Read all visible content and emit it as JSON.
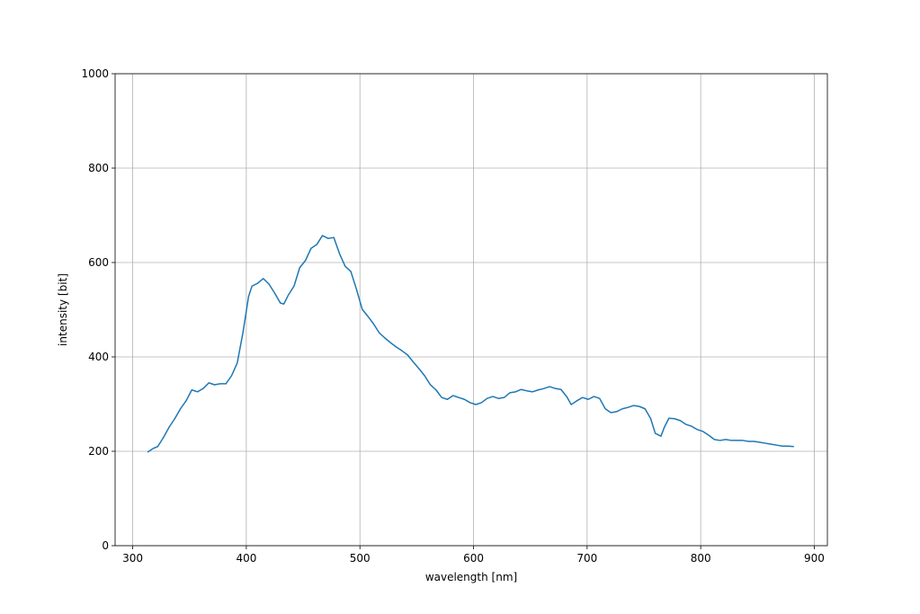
{
  "chart_data": {
    "type": "line",
    "xlabel": "wavelength [nm]",
    "ylabel": "intensity [bit]",
    "xlim": [
      284.5,
      911.5
    ],
    "ylim": [
      0,
      1000
    ],
    "xticks": [
      300,
      400,
      500,
      600,
      700,
      800,
      900
    ],
    "yticks": [
      0,
      200,
      400,
      600,
      800,
      1000
    ],
    "grid": true,
    "x": [
      313,
      318,
      322,
      327,
      332,
      337,
      342,
      347,
      352,
      357,
      362,
      367,
      372,
      377,
      382,
      387,
      392,
      397,
      402,
      405,
      410,
      415,
      420,
      425,
      430,
      433,
      437,
      442,
      447,
      452,
      457,
      462,
      467,
      472,
      477,
      482,
      487,
      492,
      497,
      502,
      507,
      512,
      517,
      522,
      527,
      532,
      537,
      542,
      547,
      552,
      557,
      562,
      567,
      572,
      577,
      582,
      587,
      592,
      597,
      602,
      607,
      612,
      617,
      622,
      627,
      632,
      637,
      642,
      647,
      652,
      657,
      662,
      667,
      672,
      677,
      682,
      686,
      691,
      696,
      701,
      706,
      711,
      716,
      721,
      726,
      731,
      736,
      741,
      746,
      751,
      756,
      760,
      765,
      768,
      772,
      777,
      782,
      787,
      792,
      797,
      802,
      807,
      812,
      817,
      822,
      827,
      832,
      837,
      842,
      847,
      852,
      857,
      862,
      867,
      872,
      877,
      882
    ],
    "series": [
      {
        "color": "#1f77b4",
        "values": [
          198,
          206,
          210,
          229,
          251,
          269,
          290,
          307,
          330,
          326,
          333,
          345,
          341,
          343,
          343,
          360,
          387,
          451,
          528,
          550,
          556,
          566,
          554,
          535,
          514,
          512,
          531,
          550,
          589,
          604,
          630,
          638,
          657,
          651,
          653,
          619,
          592,
          581,
          543,
          501,
          486,
          470,
          451,
          440,
          430,
          421,
          413,
          404,
          389,
          375,
          360,
          341,
          330,
          314,
          310,
          318,
          314,
          310,
          303,
          299,
          303,
          312,
          316,
          312,
          314,
          324,
          326,
          331,
          328,
          326,
          330,
          333,
          337,
          333,
          331,
          316,
          299,
          307,
          314,
          310,
          316,
          312,
          290,
          282,
          284,
          290,
          293,
          297,
          295,
          290,
          269,
          238,
          232,
          251,
          270,
          269,
          265,
          257,
          253,
          246,
          242,
          234,
          225,
          223,
          225,
          223,
          223,
          223,
          221,
          221,
          219,
          217,
          215,
          213,
          211,
          211,
          210
        ]
      }
    ]
  }
}
